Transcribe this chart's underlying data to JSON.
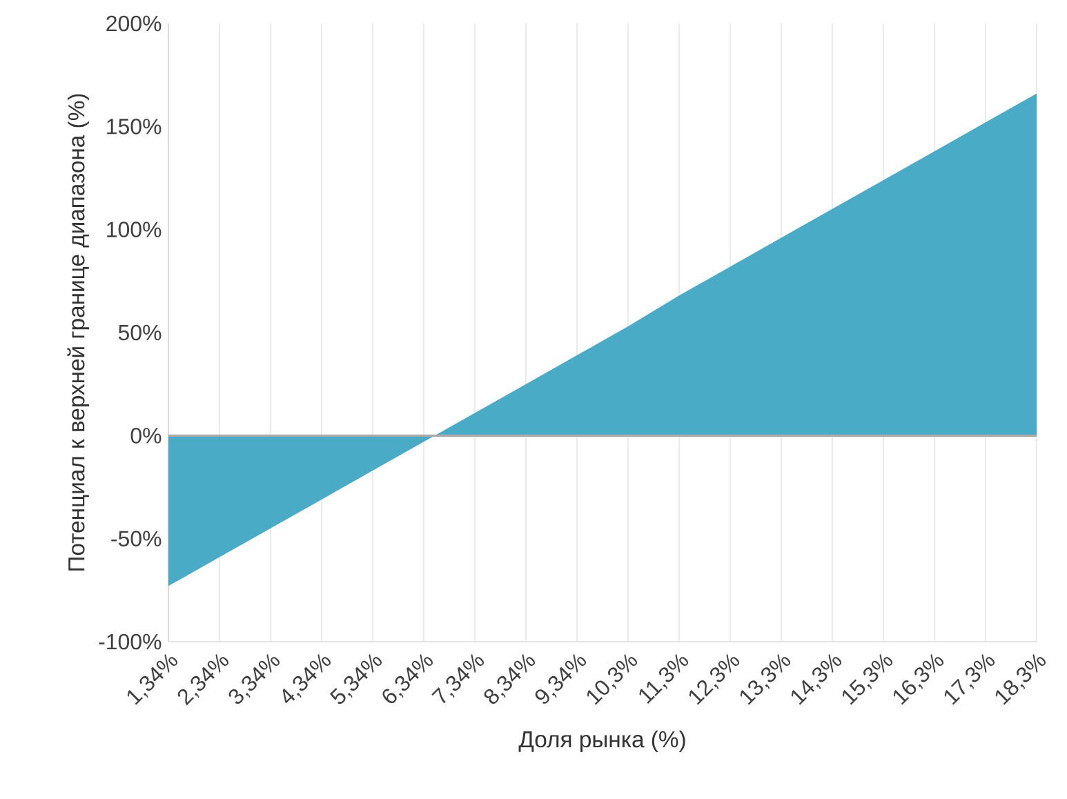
{
  "chart_data": {
    "type": "area",
    "xlabel": "Доля рынка (%)",
    "ylabel": "Потенциал к верхней границе диапазона (%)",
    "categories": [
      "1,34%",
      "2,34%",
      "3,34%",
      "4,34%",
      "5,34%",
      "6,34%",
      "7,34%",
      "8,34%",
      "9,34%",
      "10,3%",
      "11,3%",
      "12,3%",
      "13,3%",
      "14,3%",
      "15,3%",
      "16,3%",
      "17,3%",
      "18,3%"
    ],
    "values": [
      -73,
      -59,
      -45,
      -31,
      -17,
      -3,
      11,
      25,
      39,
      53,
      68,
      82,
      96,
      110,
      124,
      138,
      152,
      166
    ],
    "color": "#4aabc6",
    "ylim": [
      -100,
      200
    ],
    "yticks": [
      {
        "value": -100,
        "label": "-100%"
      },
      {
        "value": -50,
        "label": "-50%"
      },
      {
        "value": 0,
        "label": "0%"
      },
      {
        "value": 50,
        "label": "50%"
      },
      {
        "value": 100,
        "label": "100%"
      },
      {
        "value": 150,
        "label": "150%"
      },
      {
        "value": 200,
        "label": "200%"
      }
    ],
    "ref_lines": [
      {
        "axis": "y",
        "value": 0,
        "color": "#aaaaaa"
      }
    ],
    "grid": "x"
  }
}
